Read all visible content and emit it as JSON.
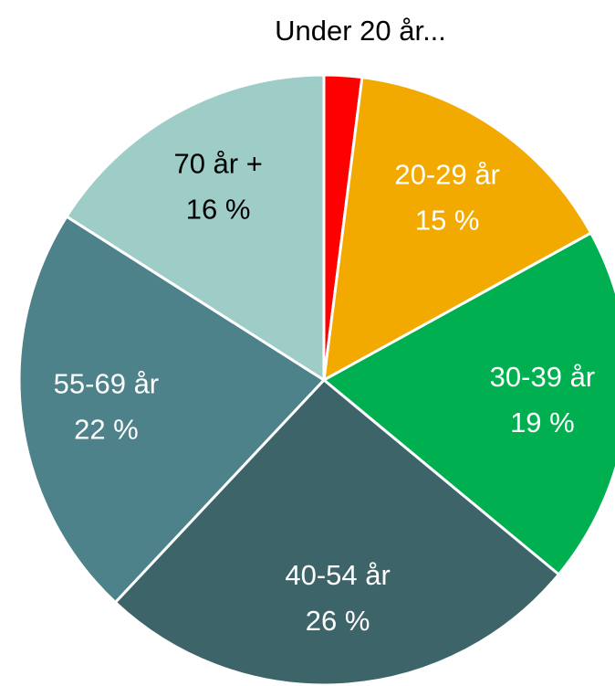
{
  "chart_data": {
    "type": "pie",
    "categories": [
      "Under 20 år...",
      "20-29 år",
      "30-39 år",
      "40-54 år",
      "55-69 år",
      "70 år +"
    ],
    "values": [
      2,
      15,
      19,
      26,
      22,
      16
    ],
    "value_labels": [
      null,
      "15 %",
      "19 %",
      "26 %",
      "22 %",
      "16 %"
    ],
    "colors": [
      "#ff0000",
      "#f2a900",
      "#00b050",
      "#3d6468",
      "#4e828a",
      "#9ecdc8"
    ],
    "label_colors": [
      "#000000",
      "#ffffff",
      "#ffffff",
      "#ffffff",
      "#ffffff",
      "#000000"
    ]
  }
}
